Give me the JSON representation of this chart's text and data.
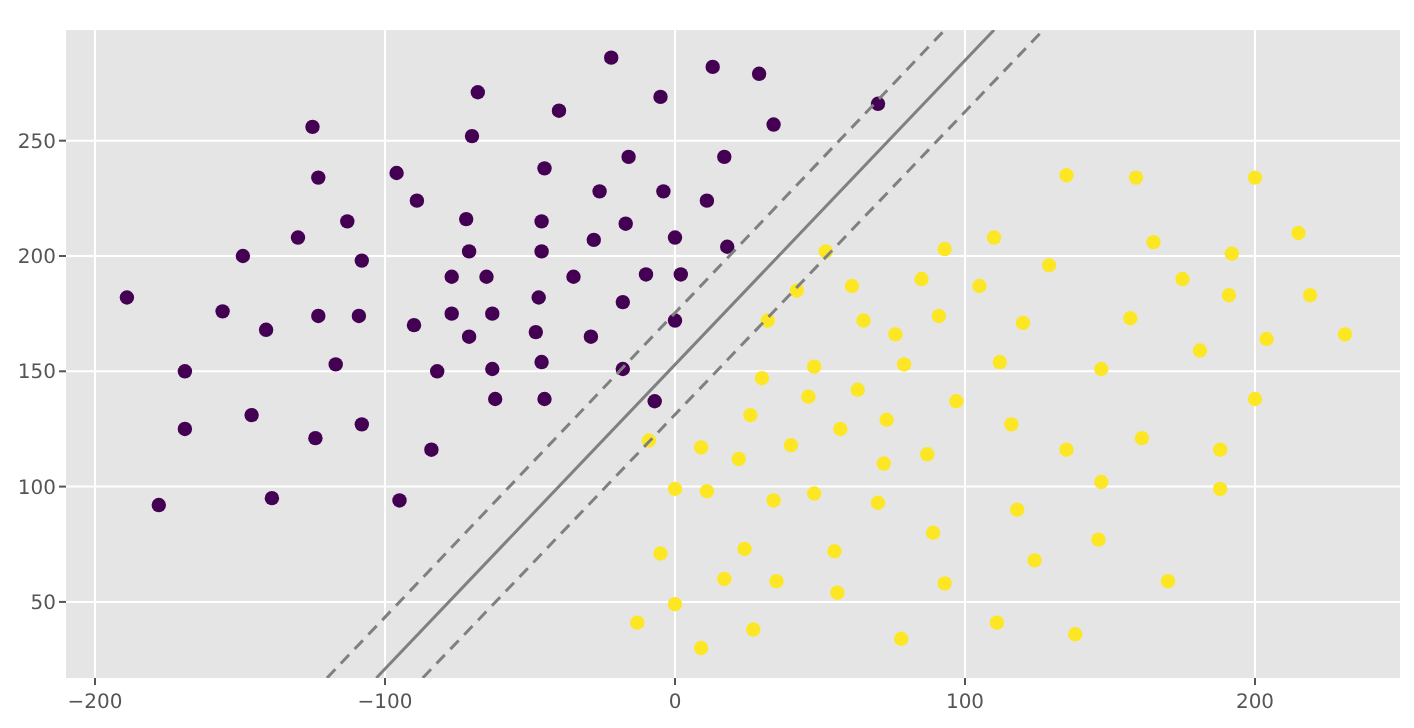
{
  "chart_data": {
    "type": "scatter",
    "xlim": [
      -210,
      250
    ],
    "ylim": [
      17,
      298
    ],
    "xticks": [
      -200,
      -100,
      0,
      100,
      200
    ],
    "yticks": [
      50,
      100,
      150,
      200,
      250
    ],
    "grid": true,
    "marker": "circle",
    "series": [
      {
        "color": "#440154",
        "x": [
          -189,
          -169,
          -156,
          -149,
          -141,
          -130,
          -125,
          -123,
          -123,
          -117,
          -113,
          -108,
          -109,
          -96,
          -89,
          -90,
          -82,
          -77,
          -77,
          -72,
          -71,
          -71,
          -70,
          -68,
          -65,
          -63,
          -63,
          -48,
          -47,
          -46,
          -46,
          -46,
          -45,
          -40,
          -35,
          -29,
          -28,
          -26,
          -22,
          -18,
          -18,
          -17,
          -16,
          -10,
          -5,
          -4,
          0,
          0,
          2,
          11,
          13,
          17,
          18,
          -169,
          -146,
          -124,
          -108,
          -84,
          -62,
          -45,
          -7,
          -178,
          -139,
          -95,
          29,
          34,
          70
        ],
        "values": [
          182,
          150,
          176,
          200,
          168,
          208,
          256,
          234,
          174,
          153,
          215,
          198,
          174,
          236,
          224,
          170,
          150,
          191,
          175,
          216,
          202,
          165,
          252,
          271,
          191,
          175,
          151,
          167,
          182,
          202,
          215,
          154,
          238,
          263,
          191,
          165,
          207,
          228,
          286,
          180,
          151,
          214,
          243,
          192,
          269,
          228,
          172,
          208,
          192,
          224,
          282,
          243,
          204,
          125,
          131,
          121,
          127,
          116,
          138,
          138,
          137,
          92,
          95,
          94,
          279,
          257,
          266
        ]
      },
      {
        "color": "#fde725",
        "x": [
          52,
          42,
          32,
          30,
          48,
          61,
          65,
          76,
          79,
          85,
          91,
          93,
          110,
          105,
          112,
          120,
          129,
          135,
          147,
          157,
          159,
          165,
          175,
          181,
          191,
          192,
          200,
          204,
          215,
          219,
          231,
          -9,
          9,
          0,
          11,
          26,
          22,
          46,
          63,
          57,
          40,
          34,
          48,
          70,
          72,
          73,
          87,
          97,
          89,
          93,
          55,
          56,
          35,
          24,
          17,
          -5,
          0,
          -13,
          9,
          27,
          78,
          111,
          138,
          116,
          118,
          124,
          135,
          147,
          146,
          161,
          170,
          188,
          188,
          200
        ],
        "values": [
          202,
          185,
          172,
          147,
          152,
          187,
          172,
          166,
          153,
          190,
          174,
          203,
          208,
          187,
          154,
          171,
          196,
          235,
          151,
          173,
          234,
          206,
          190,
          159,
          183,
          201,
          234,
          164,
          210,
          183,
          166,
          120,
          117,
          99,
          98,
          131,
          112,
          139,
          142,
          125,
          118,
          94,
          97,
          93,
          110,
          129,
          114,
          137,
          80,
          58,
          72,
          54,
          59,
          73,
          60,
          71,
          49,
          41,
          30,
          38,
          34,
          41,
          36,
          127,
          90,
          68,
          116,
          102,
          77,
          121,
          59,
          116,
          99,
          138
        ]
      },
      {
        "type": "line",
        "color": "#808080",
        "line_style": "dashed",
        "marker": "none",
        "x": [
          -120,
          93
        ],
        "values": [
          17,
          298
        ]
      },
      {
        "type": "line",
        "color": "#808080",
        "line_style": "solid",
        "marker": "none",
        "x": [
          -103,
          110
        ],
        "values": [
          17,
          298
        ]
      },
      {
        "type": "line",
        "color": "#808080",
        "line_style": "dashed",
        "marker": "none",
        "x": [
          -87,
          127
        ],
        "values": [
          17,
          298
        ]
      }
    ]
  }
}
